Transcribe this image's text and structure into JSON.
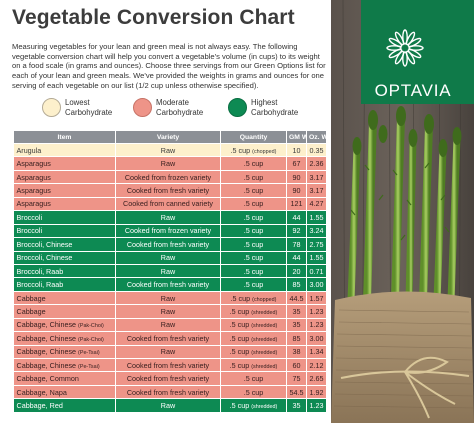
{
  "title": "Vegetable Conversion Chart",
  "intro": "Measuring vegetables for your lean and green meal is not always easy. The following vegetable conversion chart will help you convert a vegetable's volume (in cups) to its weight on a food scale (in grams and ounces). Choose three servings from our Green Options list for each of your lean and green meals. We've provided the weights in grams and ounces for one serving of each vegetable on our list (1/2 cup unless otherwise specified).",
  "legend": [
    {
      "line1": "Lowest",
      "line2": "Carbohydrate",
      "color": "#fdf0cc"
    },
    {
      "line1": "Moderate",
      "line2": "Carbohydrate",
      "color": "#ee9488"
    },
    {
      "line1": "Highest",
      "line2": "Carbohydrate",
      "color": "#0d8a53"
    }
  ],
  "brand": "OPTAVIA",
  "table": {
    "headers": [
      "Item",
      "Variety",
      "Quantity",
      "GM Wt",
      "Oz. Wt"
    ],
    "rows": [
      {
        "level": "low",
        "item": "Arugula",
        "item_note": "",
        "variety": "Raw",
        "qty": ".5 cup",
        "qty_note": "(chopped)",
        "gm": "10",
        "oz": "0.35"
      },
      {
        "level": "mod",
        "item": "Asparagus",
        "item_note": "",
        "variety": "Raw",
        "qty": ".5 cup",
        "qty_note": "",
        "gm": "67",
        "oz": "2.36"
      },
      {
        "level": "mod",
        "item": "Asparagus",
        "item_note": "",
        "variety": "Cooked from frozen variety",
        "qty": ".5 cup",
        "qty_note": "",
        "gm": "90",
        "oz": "3.17"
      },
      {
        "level": "mod",
        "item": "Asparagus",
        "item_note": "",
        "variety": "Cooked from fresh variety",
        "qty": ".5 cup",
        "qty_note": "",
        "gm": "90",
        "oz": "3.17"
      },
      {
        "level": "mod",
        "item": "Asparagus",
        "item_note": "",
        "variety": "Cooked from canned variety",
        "qty": ".5 cup",
        "qty_note": "",
        "gm": "121",
        "oz": "4.27"
      },
      {
        "level": "high",
        "item": "Broccoli",
        "item_note": "",
        "variety": "Raw",
        "qty": ".5 cup",
        "qty_note": "",
        "gm": "44",
        "oz": "1.55"
      },
      {
        "level": "high",
        "item": "Broccoli",
        "item_note": "",
        "variety": "Cooked from frozen variety",
        "qty": ".5 cup",
        "qty_note": "",
        "gm": "92",
        "oz": "3.24"
      },
      {
        "level": "high",
        "item": "Broccoli, Chinese",
        "item_note": "",
        "variety": "Cooked from fresh variety",
        "qty": ".5 cup",
        "qty_note": "",
        "gm": "78",
        "oz": "2.75"
      },
      {
        "level": "high",
        "item": "Broccoli, Chinese",
        "item_note": "",
        "variety": "Raw",
        "qty": ".5 cup",
        "qty_note": "",
        "gm": "44",
        "oz": "1.55"
      },
      {
        "level": "high",
        "item": "Broccoli, Raab",
        "item_note": "",
        "variety": "Raw",
        "qty": ".5 cup",
        "qty_note": "",
        "gm": "20",
        "oz": "0.71"
      },
      {
        "level": "high",
        "item": "Broccoli, Raab",
        "item_note": "",
        "variety": "Cooked from fresh variety",
        "qty": ".5 cup",
        "qty_note": "",
        "gm": "85",
        "oz": "3.00"
      },
      {
        "level": "mod",
        "item": "Cabbage",
        "item_note": "",
        "variety": "Raw",
        "qty": ".5 cup",
        "qty_note": "(chopped)",
        "gm": "44.5",
        "oz": "1.57"
      },
      {
        "level": "mod",
        "item": "Cabbage",
        "item_note": "",
        "variety": "Raw",
        "qty": ".5 cup",
        "qty_note": "(shredded)",
        "gm": "35",
        "oz": "1.23"
      },
      {
        "level": "mod",
        "item": "Cabbage, Chinese",
        "item_note": "(Pak-Choi)",
        "variety": "Raw",
        "qty": ".5 cup",
        "qty_note": "(shredded)",
        "gm": "35",
        "oz": "1.23"
      },
      {
        "level": "mod",
        "item": "Cabbage, Chinese",
        "item_note": "(Pak-Choi)",
        "variety": "Cooked from fresh variety",
        "qty": ".5 cup",
        "qty_note": "(shredded)",
        "gm": "85",
        "oz": "3.00"
      },
      {
        "level": "mod",
        "item": "Cabbage, Chinese",
        "item_note": "(Pe-Tsai)",
        "variety": "Raw",
        "qty": ".5 cup",
        "qty_note": "(shredded)",
        "gm": "38",
        "oz": "1.34"
      },
      {
        "level": "mod",
        "item": "Cabbage, Chinese",
        "item_note": "(Pe-Tsai)",
        "variety": "Cooked from fresh variety",
        "qty": ".5 cup",
        "qty_note": "(shredded)",
        "gm": "60",
        "oz": "2.12"
      },
      {
        "level": "mod",
        "item": "Cabbage, Common",
        "item_note": "",
        "variety": "Cooked from fresh variety",
        "qty": ".5 cup",
        "qty_note": "",
        "gm": "75",
        "oz": "2.65"
      },
      {
        "level": "mod",
        "item": "Cabbage, Napa",
        "item_note": "",
        "variety": "Cooked from fresh variety",
        "qty": ".5 cup",
        "qty_note": "",
        "gm": "54.5",
        "oz": "1.92"
      },
      {
        "level": "high",
        "item": "Cabbage, Red",
        "item_note": "",
        "variety": "Raw",
        "qty": ".5 cup",
        "qty_note": "(shredded)",
        "gm": "35",
        "oz": "1.23"
      }
    ]
  }
}
